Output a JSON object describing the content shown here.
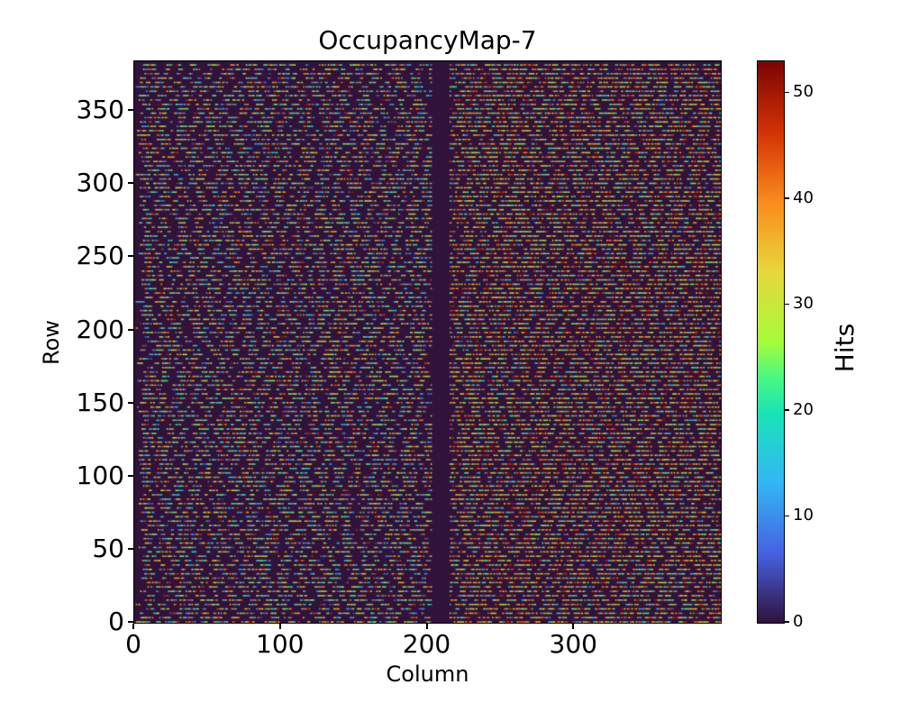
{
  "chart_data": {
    "type": "heatmap",
    "title": "OccupancyMap-7",
    "xlabel": "Column",
    "ylabel": "Row",
    "colorbar_label": "Hits",
    "n_cols": 400,
    "n_rows": 384,
    "xlim": [
      0,
      400
    ],
    "ylim": [
      0,
      384
    ],
    "x_ticks": [
      0,
      100,
      200,
      300
    ],
    "y_ticks": [
      0,
      50,
      100,
      150,
      200,
      250,
      300,
      350
    ],
    "colorbar_ticks": [
      0,
      10,
      20,
      30,
      40,
      50
    ],
    "vmin": 0,
    "vmax": 53,
    "colormap": "turbo",
    "colormap_stops": [
      [
        0.0,
        "#30123b"
      ],
      [
        0.125,
        "#4662e2"
      ],
      [
        0.25,
        "#33b7f5"
      ],
      [
        0.375,
        "#1ae4b6"
      ],
      [
        0.4375,
        "#4af882"
      ],
      [
        0.5,
        "#a4fc3c"
      ],
      [
        0.625,
        "#e7d73c"
      ],
      [
        0.75,
        "#f98b1d"
      ],
      [
        0.875,
        "#d23105"
      ],
      [
        1.0,
        "#7a0403"
      ]
    ],
    "background_color": "#30123b",
    "dead_column_start": 203,
    "dead_column_end": 214,
    "pattern_model": {
      "description": "pseudo-random hit runs on every 3rd row; vertical dead band at columns 203-214; right half denser with red bias",
      "row_period": 3,
      "seed": 7,
      "left_half": {
        "run_min": 2,
        "run_max": 10,
        "gap_min": 1,
        "gap_max": 7,
        "value_min": 4,
        "value_max": 53,
        "value_bias_pow": 1.0
      },
      "right_half": {
        "run_min": 3,
        "run_max": 14,
        "gap_min": 1,
        "gap_max": 5,
        "value_min": 4,
        "value_max": 53,
        "value_bias_pow": 0.65
      }
    }
  }
}
